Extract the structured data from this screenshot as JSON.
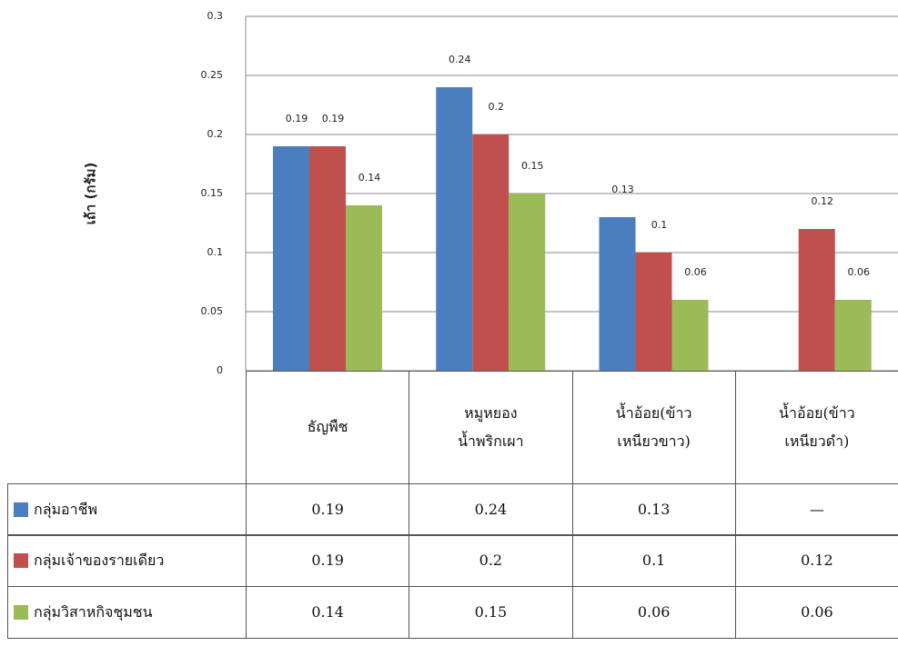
{
  "chart_data": {
    "type": "bar",
    "y_label": "เถ้า (กรัม)",
    "categories": [
      "ธัญพืช",
      "หมูหยอง\nน้ำพริกเผา",
      "น้ำอ้อย(ข้าว\nเหนียวขาว)",
      "น้ำอ้อย(ข้าว\nเหนียวดำ)"
    ],
    "series": [
      {
        "name": "กลุ่มอาชีพ",
        "color": "#4a7ebf",
        "values": [
          0.19,
          0.24,
          0.13,
          null
        ],
        "value_labels": [
          "0.19",
          "0.24",
          "0.13",
          "—"
        ]
      },
      {
        "name": "กลุ่มเจ้าของรายเดียว",
        "color": "#c0504d",
        "values": [
          0.19,
          0.2,
          0.1,
          0.12
        ]
      },
      {
        "name": "กลุ่มวิสาหกิจชุมชน",
        "color": "#9bbb59",
        "values": [
          0.14,
          0.15,
          0.06,
          0.06
        ]
      }
    ],
    "ylim": [
      0,
      0.3
    ],
    "yticks": [
      0,
      0.05,
      0.1,
      0.15,
      0.2,
      0.25,
      0.3
    ],
    "grid": true
  }
}
